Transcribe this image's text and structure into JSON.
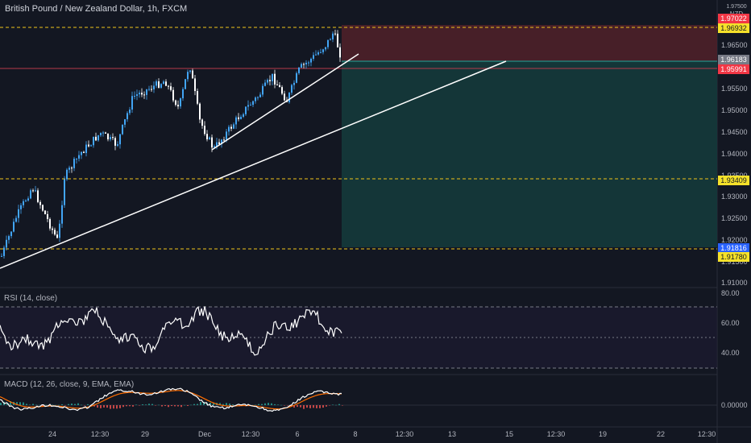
{
  "header": {
    "title": "British Pound / New Zealand Dollar, 1h, FXCM",
    "currency_code": "1.97500",
    "currency": "NZD"
  },
  "price_axis": {
    "ticks": [
      "1.96500",
      "1.96000",
      "1.95500",
      "1.95000",
      "1.94500",
      "1.94000",
      "1.93500",
      "1.93000",
      "1.92500",
      "1.92000",
      "1.91500",
      "1.91000"
    ]
  },
  "price_tags": {
    "target_top": "1.97022",
    "upper_dashed": "1.96932",
    "current": "1.96183",
    "entry": "1.95991",
    "mid_dashed": "1.93409",
    "stop": "1.91816",
    "lower_dashed": "1.91780"
  },
  "rsi": {
    "label": "RSI (14, close)",
    "ticks": [
      "80.00",
      "60.00",
      "40.00"
    ]
  },
  "macd": {
    "label": "MACD (12, 26, close, 9, EMA, EMA)",
    "ticks": [
      "0.00000"
    ]
  },
  "date_axis": [
    "24",
    "12:30",
    "29",
    "Dec",
    "12:30",
    "6",
    "8",
    "12:30",
    "13",
    "15",
    "12:30",
    "19",
    "22",
    "12:30"
  ],
  "colors": {
    "background": "#131722",
    "bull_candle": "#42a5f5",
    "bear_candle": "#ffffff",
    "dashed_level": "#f0c419",
    "target_zone": "#4a2029",
    "stop_zone": "#14383a",
    "rsi": "#ffffff",
    "macd_line": "#ffffff",
    "signal_line": "#ff6d00"
  }
}
